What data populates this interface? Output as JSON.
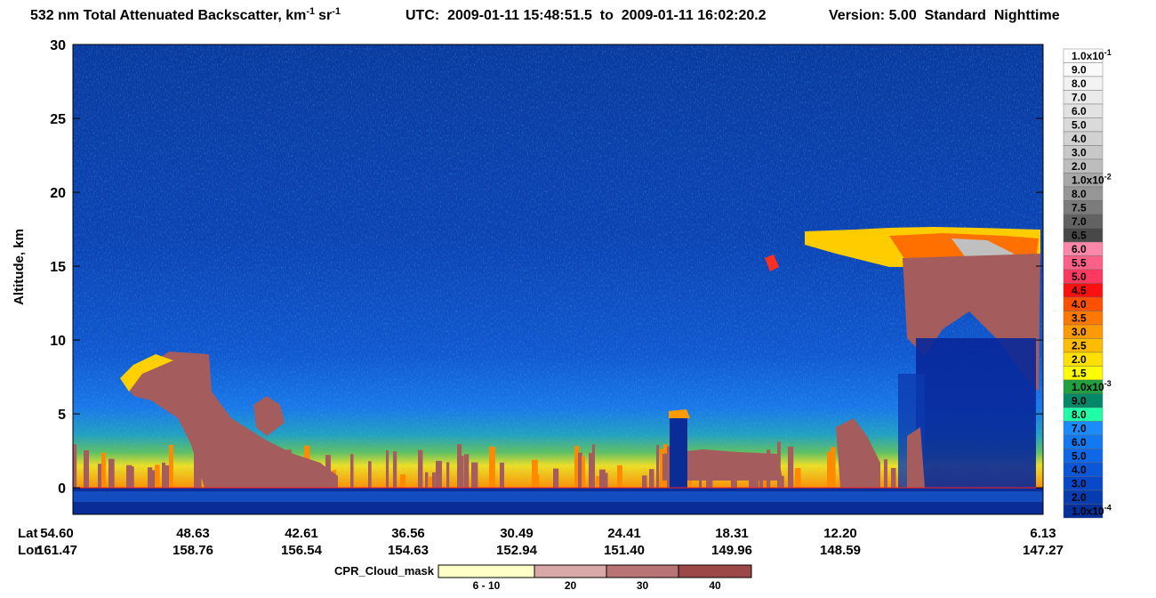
{
  "chart_data": {
    "type": "curtain",
    "title": {
      "text": "532 nm Total Attenuated Backscatter, km",
      "sup1": "-1",
      "unit2": "sr",
      "sup2": "-1"
    },
    "time_range": "UTC:  2009-01-11 15:48:51.5  to  2009-01-11 16:02:20.2",
    "version": "Version: 5.00  Standard  Nighttime",
    "ylabel": "Altitude, km",
    "ylim": [
      -1.8,
      30
    ],
    "yticks": [
      0,
      5,
      10,
      15,
      20,
      25,
      30
    ],
    "x_rows": [
      "Lat",
      "Lon"
    ],
    "xticks_lat": [
      {
        "value": 54.6,
        "label": "54.60"
      },
      48.63,
      42.61,
      36.56,
      30.49,
      24.41,
      18.31,
      {
        "value": 12.2,
        "label": "12.20"
      },
      6.13
    ],
    "xticks_lon": [
      161.47,
      158.76,
      156.54,
      154.63,
      152.94,
      {
        "value": 151.4,
        "label": "151.40"
      },
      149.96,
      148.59,
      147.27
    ],
    "colorbar": {
      "labels": [
        {
          "text": "1.0x10",
          "sup": "-1"
        },
        "9.0",
        "8.0",
        "7.0",
        "6.0",
        "5.0",
        "4.0",
        "3.0",
        "2.0",
        {
          "text": "1.0x10",
          "sup": "-2"
        },
        "8.0",
        "7.5",
        "7.0",
        "6.5",
        "6.0",
        "5.5",
        "5.0",
        "4.5",
        "4.0",
        "3.5",
        "3.0",
        "2.5",
        "2.0",
        "1.5",
        {
          "text": "1.0x10",
          "sup": "-3"
        },
        "9.0",
        "8.0",
        "7.0",
        "6.0",
        "5.0",
        "4.0",
        "3.0",
        "2.0",
        {
          "text": "1.0x10",
          "sup": "-4"
        }
      ],
      "colors": [
        "#ffffff",
        "#fafafa",
        "#f2f2f2",
        "#eaeaea",
        "#e2e2e2",
        "#dadada",
        "#d2d2d2",
        "#c8c8c8",
        "#bdbdbd",
        "#a8a8a8",
        "#969696",
        "#7c7c7c",
        "#626262",
        "#484848",
        "#ff88aa",
        "#ff6088",
        "#ff3860",
        "#ff1010",
        "#ff5000",
        "#ff7800",
        "#ff9a00",
        "#ffbc00",
        "#ffe000",
        "#ffff00",
        "#20a040",
        "#008868",
        "#20ffa8",
        "#1a8cff",
        "#1478f0",
        "#0f68e8",
        "#0a58d8",
        "#0848c8",
        "#063cb0",
        "#04309c"
      ]
    },
    "cpr_legend": {
      "title": "CPR_Cloud_mask",
      "labels": [
        "6 - 10",
        "20",
        "30",
        "40"
      ],
      "colors": [
        "#ffffc8",
        "#d8a8a8",
        "#b87474",
        "#9c4848"
      ]
    }
  }
}
